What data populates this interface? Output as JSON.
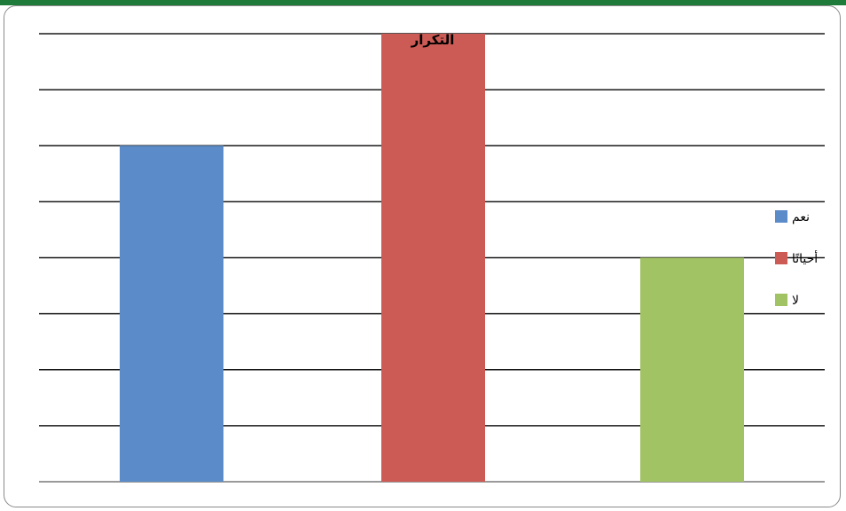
{
  "chart_data": {
    "type": "bar",
    "title": "التكرار",
    "categories": [
      "نعم",
      "أحيانًا",
      "لا"
    ],
    "series": [
      {
        "name": "نعم",
        "values": [
          6,
          null,
          null
        ],
        "color": "#5b8bc9"
      },
      {
        "name": "أحيانًا",
        "values": [
          null,
          8,
          null
        ],
        "color": "#cd5b55"
      },
      {
        "name": "لا",
        "values": [
          null,
          null,
          4
        ],
        "color": "#a2c364"
      }
    ],
    "values": [
      6,
      8,
      4
    ],
    "ylim": [
      0,
      8
    ],
    "grid": true,
    "legend_position": "right",
    "xlabel": "",
    "ylabel": ""
  },
  "legend": {
    "items": [
      {
        "label": "نعم",
        "color": "#5b8bc9"
      },
      {
        "label": "أحيانًا",
        "color": "#cd5b55"
      },
      {
        "label": "لا",
        "color": "#a2c364"
      }
    ]
  }
}
